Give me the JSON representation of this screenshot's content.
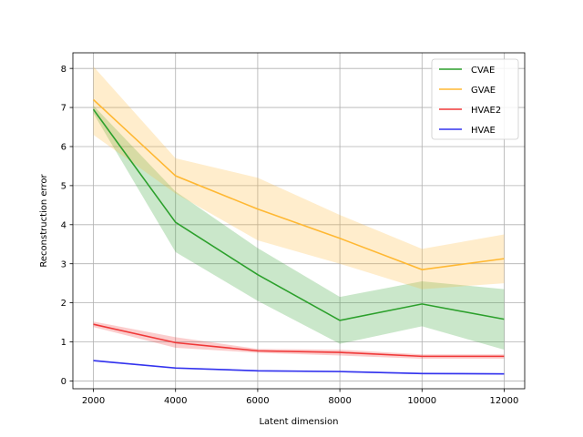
{
  "chart_data": {
    "type": "line",
    "title": "",
    "xlabel": "Latent dimension",
    "ylabel": "Reconstruction error",
    "x": [
      2000,
      4000,
      6000,
      8000,
      10000,
      12000
    ],
    "xlim": [
      1500,
      12500
    ],
    "ylim": [
      -0.2,
      8.4
    ],
    "xticks": [
      2000,
      4000,
      6000,
      8000,
      10000,
      12000
    ],
    "yticks": [
      0,
      1,
      2,
      3,
      4,
      5,
      6,
      7,
      8
    ],
    "grid": true,
    "legend_position": "top-right",
    "series": [
      {
        "name": "CVAE",
        "color": "#2ca02c",
        "values": [
          6.95,
          4.06,
          2.72,
          1.55,
          1.97,
          1.58
        ],
        "lower": [
          6.85,
          3.3,
          2.05,
          0.95,
          1.4,
          0.8
        ],
        "upper": [
          7.05,
          4.85,
          3.4,
          2.15,
          2.55,
          2.35
        ]
      },
      {
        "name": "GVAE",
        "color": "#ffb833",
        "values": [
          7.2,
          5.25,
          4.4,
          3.65,
          2.85,
          3.13
        ],
        "lower": [
          6.3,
          4.8,
          3.6,
          3.0,
          2.35,
          2.5
        ],
        "upper": [
          8.05,
          5.7,
          5.2,
          4.25,
          3.38,
          3.75
        ]
      },
      {
        "name": "HVAE2",
        "color": "#f03838",
        "values": [
          1.45,
          0.98,
          0.77,
          0.73,
          0.63,
          0.63
        ],
        "lower": [
          1.38,
          0.85,
          0.72,
          0.65,
          0.57,
          0.57
        ],
        "upper": [
          1.52,
          1.12,
          0.82,
          0.8,
          0.68,
          0.68
        ]
      },
      {
        "name": "HVAE",
        "color": "#3333ee",
        "values": [
          0.52,
          0.33,
          0.26,
          0.24,
          0.19,
          0.18
        ],
        "lower": [
          0.5,
          0.31,
          0.24,
          0.22,
          0.17,
          0.16
        ],
        "upper": [
          0.54,
          0.35,
          0.28,
          0.26,
          0.21,
          0.2
        ]
      }
    ]
  }
}
